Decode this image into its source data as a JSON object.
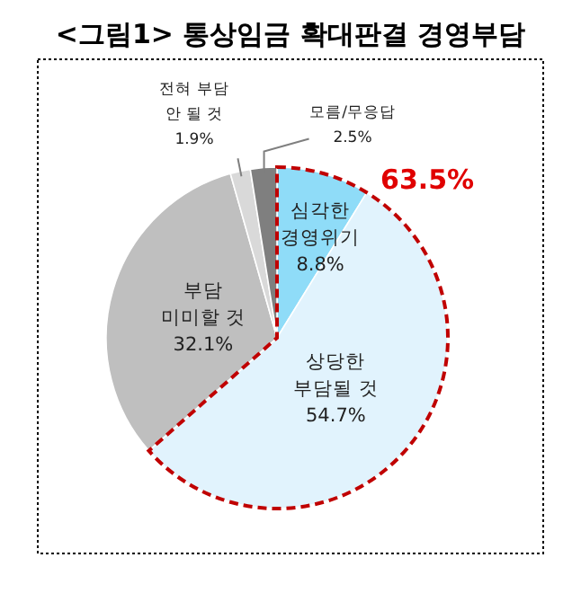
{
  "chart_data": {
    "type": "pie",
    "title": "<그림1> 통상임금 확대판결 경영부담",
    "categories": [
      "심각한\n경영위기",
      "상당한\n부담될 것",
      "부담\n미미할 것",
      "전혀 부담\n안 될 것",
      "모름/무응답"
    ],
    "values": [
      8.8,
      54.7,
      32.1,
      1.9,
      2.5
    ],
    "colors": [
      "#8fdcf8",
      "#e1f3fd",
      "#bfbfbf",
      "#d9d9d9",
      "#7f7f7f"
    ],
    "value_labels": [
      "8.8%",
      "54.7%",
      "32.1%",
      "1.9%",
      "2.5%"
    ],
    "annotations": [
      "63.5%"
    ]
  }
}
